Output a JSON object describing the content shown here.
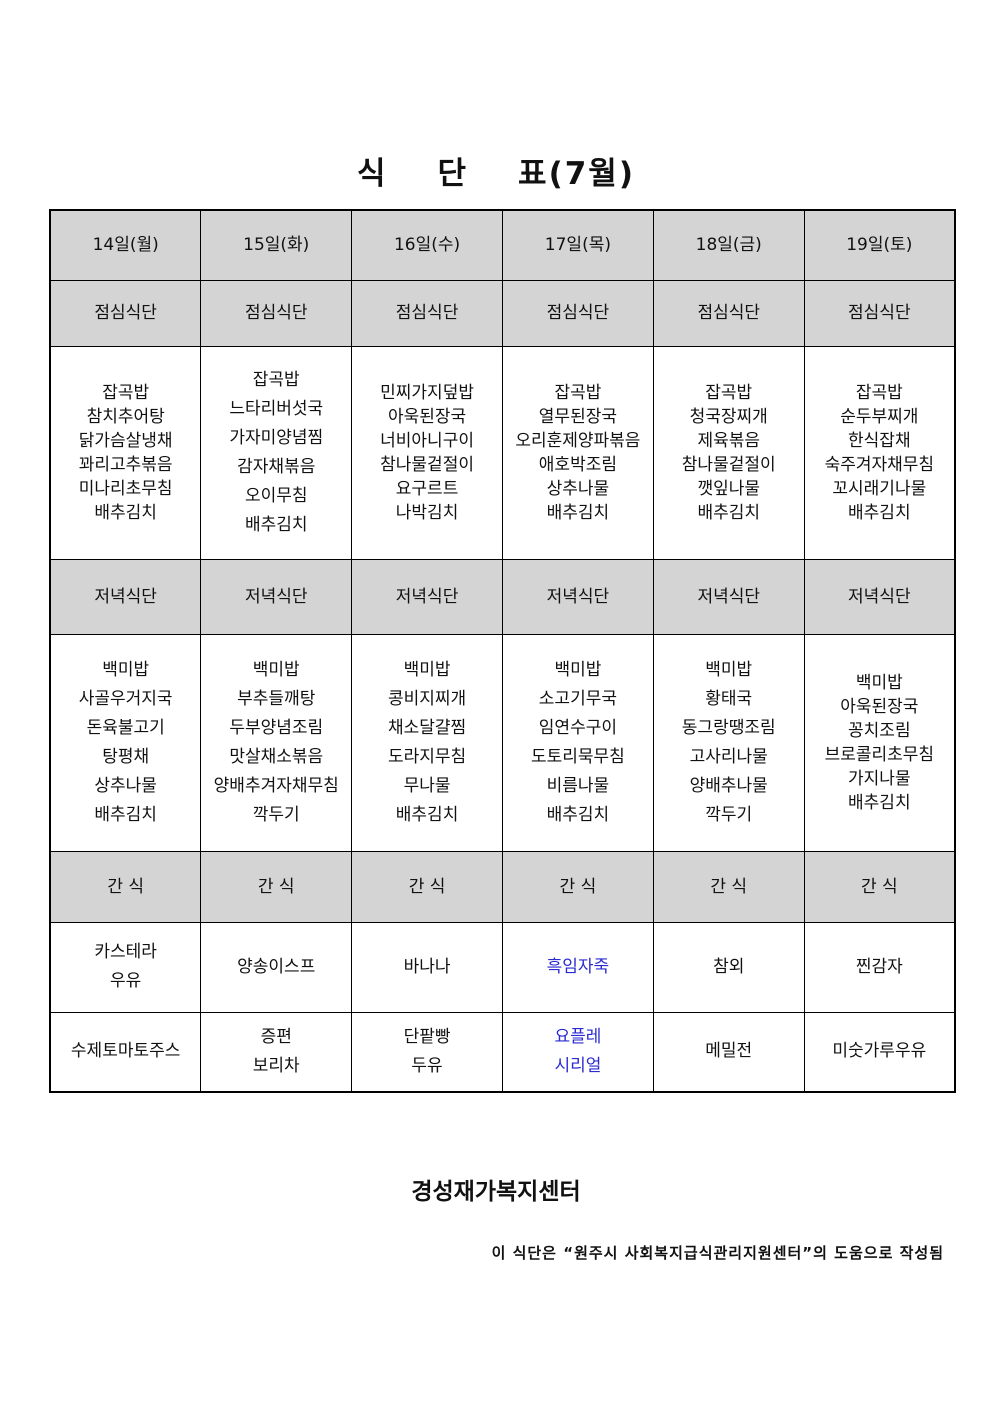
{
  "title": {
    "part1": "식",
    "part2": "단",
    "part3": "표(7월)"
  },
  "days": [
    "14일(월)",
    "15일(화)",
    "16일(수)",
    "17일(목)",
    "18일(금)",
    "19일(토)"
  ],
  "lunch_label": "점심식단",
  "lunch": [
    [
      "잡곡밥",
      "참치추어탕",
      "닭가슴살냉채",
      "꽈리고추볶음",
      "미나리초무침",
      "배추김치"
    ],
    [
      "잡곡밥",
      "느타리버섯국",
      "가자미양념찜",
      "감자채볶음",
      "오이무침",
      "배추김치"
    ],
    [
      "민찌가지덮밥",
      "아욱된장국",
      "너비아니구이",
      "참나물겉절이",
      "요구르트",
      "나박김치"
    ],
    [
      "잡곡밥",
      "열무된장국",
      "오리훈제양파볶음",
      "애호박조림",
      "상추나물",
      "배추김치"
    ],
    [
      "잡곡밥",
      "청국장찌개",
      "제육볶음",
      "참나물겉절이",
      "깻잎나물",
      "배추김치"
    ],
    [
      "잡곡밥",
      "순두부찌개",
      "한식잡채",
      "숙주겨자채무침",
      "꼬시래기나물",
      "배추김치"
    ]
  ],
  "dinner_label": "저녁식단",
  "dinner": [
    [
      "백미밥",
      "사골우거지국",
      "돈육불고기",
      "탕평채",
      "상추나물",
      "배추김치"
    ],
    [
      "백미밥",
      "부추들깨탕",
      "두부양념조림",
      "맛살채소볶음",
      "양배추겨자채무침",
      "깍두기"
    ],
    [
      "백미밥",
      "콩비지찌개",
      "채소달걀찜",
      "도라지무침",
      "무나물",
      "배추김치"
    ],
    [
      "백미밥",
      "소고기무국",
      "임연수구이",
      "도토리묵무침",
      "비름나물",
      "배추김치"
    ],
    [
      "백미밥",
      "황태국",
      "동그랑땡조림",
      "고사리나물",
      "양배추나물",
      "깍두기"
    ],
    [
      "백미밥",
      "아욱된장국",
      "꽁치조림",
      "브로콜리초무침",
      "가지나물",
      "배추김치"
    ]
  ],
  "snack_label": "간 식",
  "snack1": [
    [
      "카스테라",
      "우유"
    ],
    [
      "양송이스프"
    ],
    [
      "바나나"
    ],
    [
      "흑임자죽"
    ],
    [
      "참외"
    ],
    [
      "찐감자"
    ]
  ],
  "snack2": [
    [
      "수제토마토주스"
    ],
    [
      "증편",
      "보리차"
    ],
    [
      "단팥빵",
      "두유"
    ],
    [
      "요플레",
      "시리얼"
    ],
    [
      "메밀전"
    ],
    [
      "미숫가루우유"
    ]
  ],
  "highlight_color": "#2a2ad0",
  "organization": "경성재가복지센터",
  "note": "이 식단은 “원주시 사회복지급식관리지원센터”의 도움으로 작성됨"
}
